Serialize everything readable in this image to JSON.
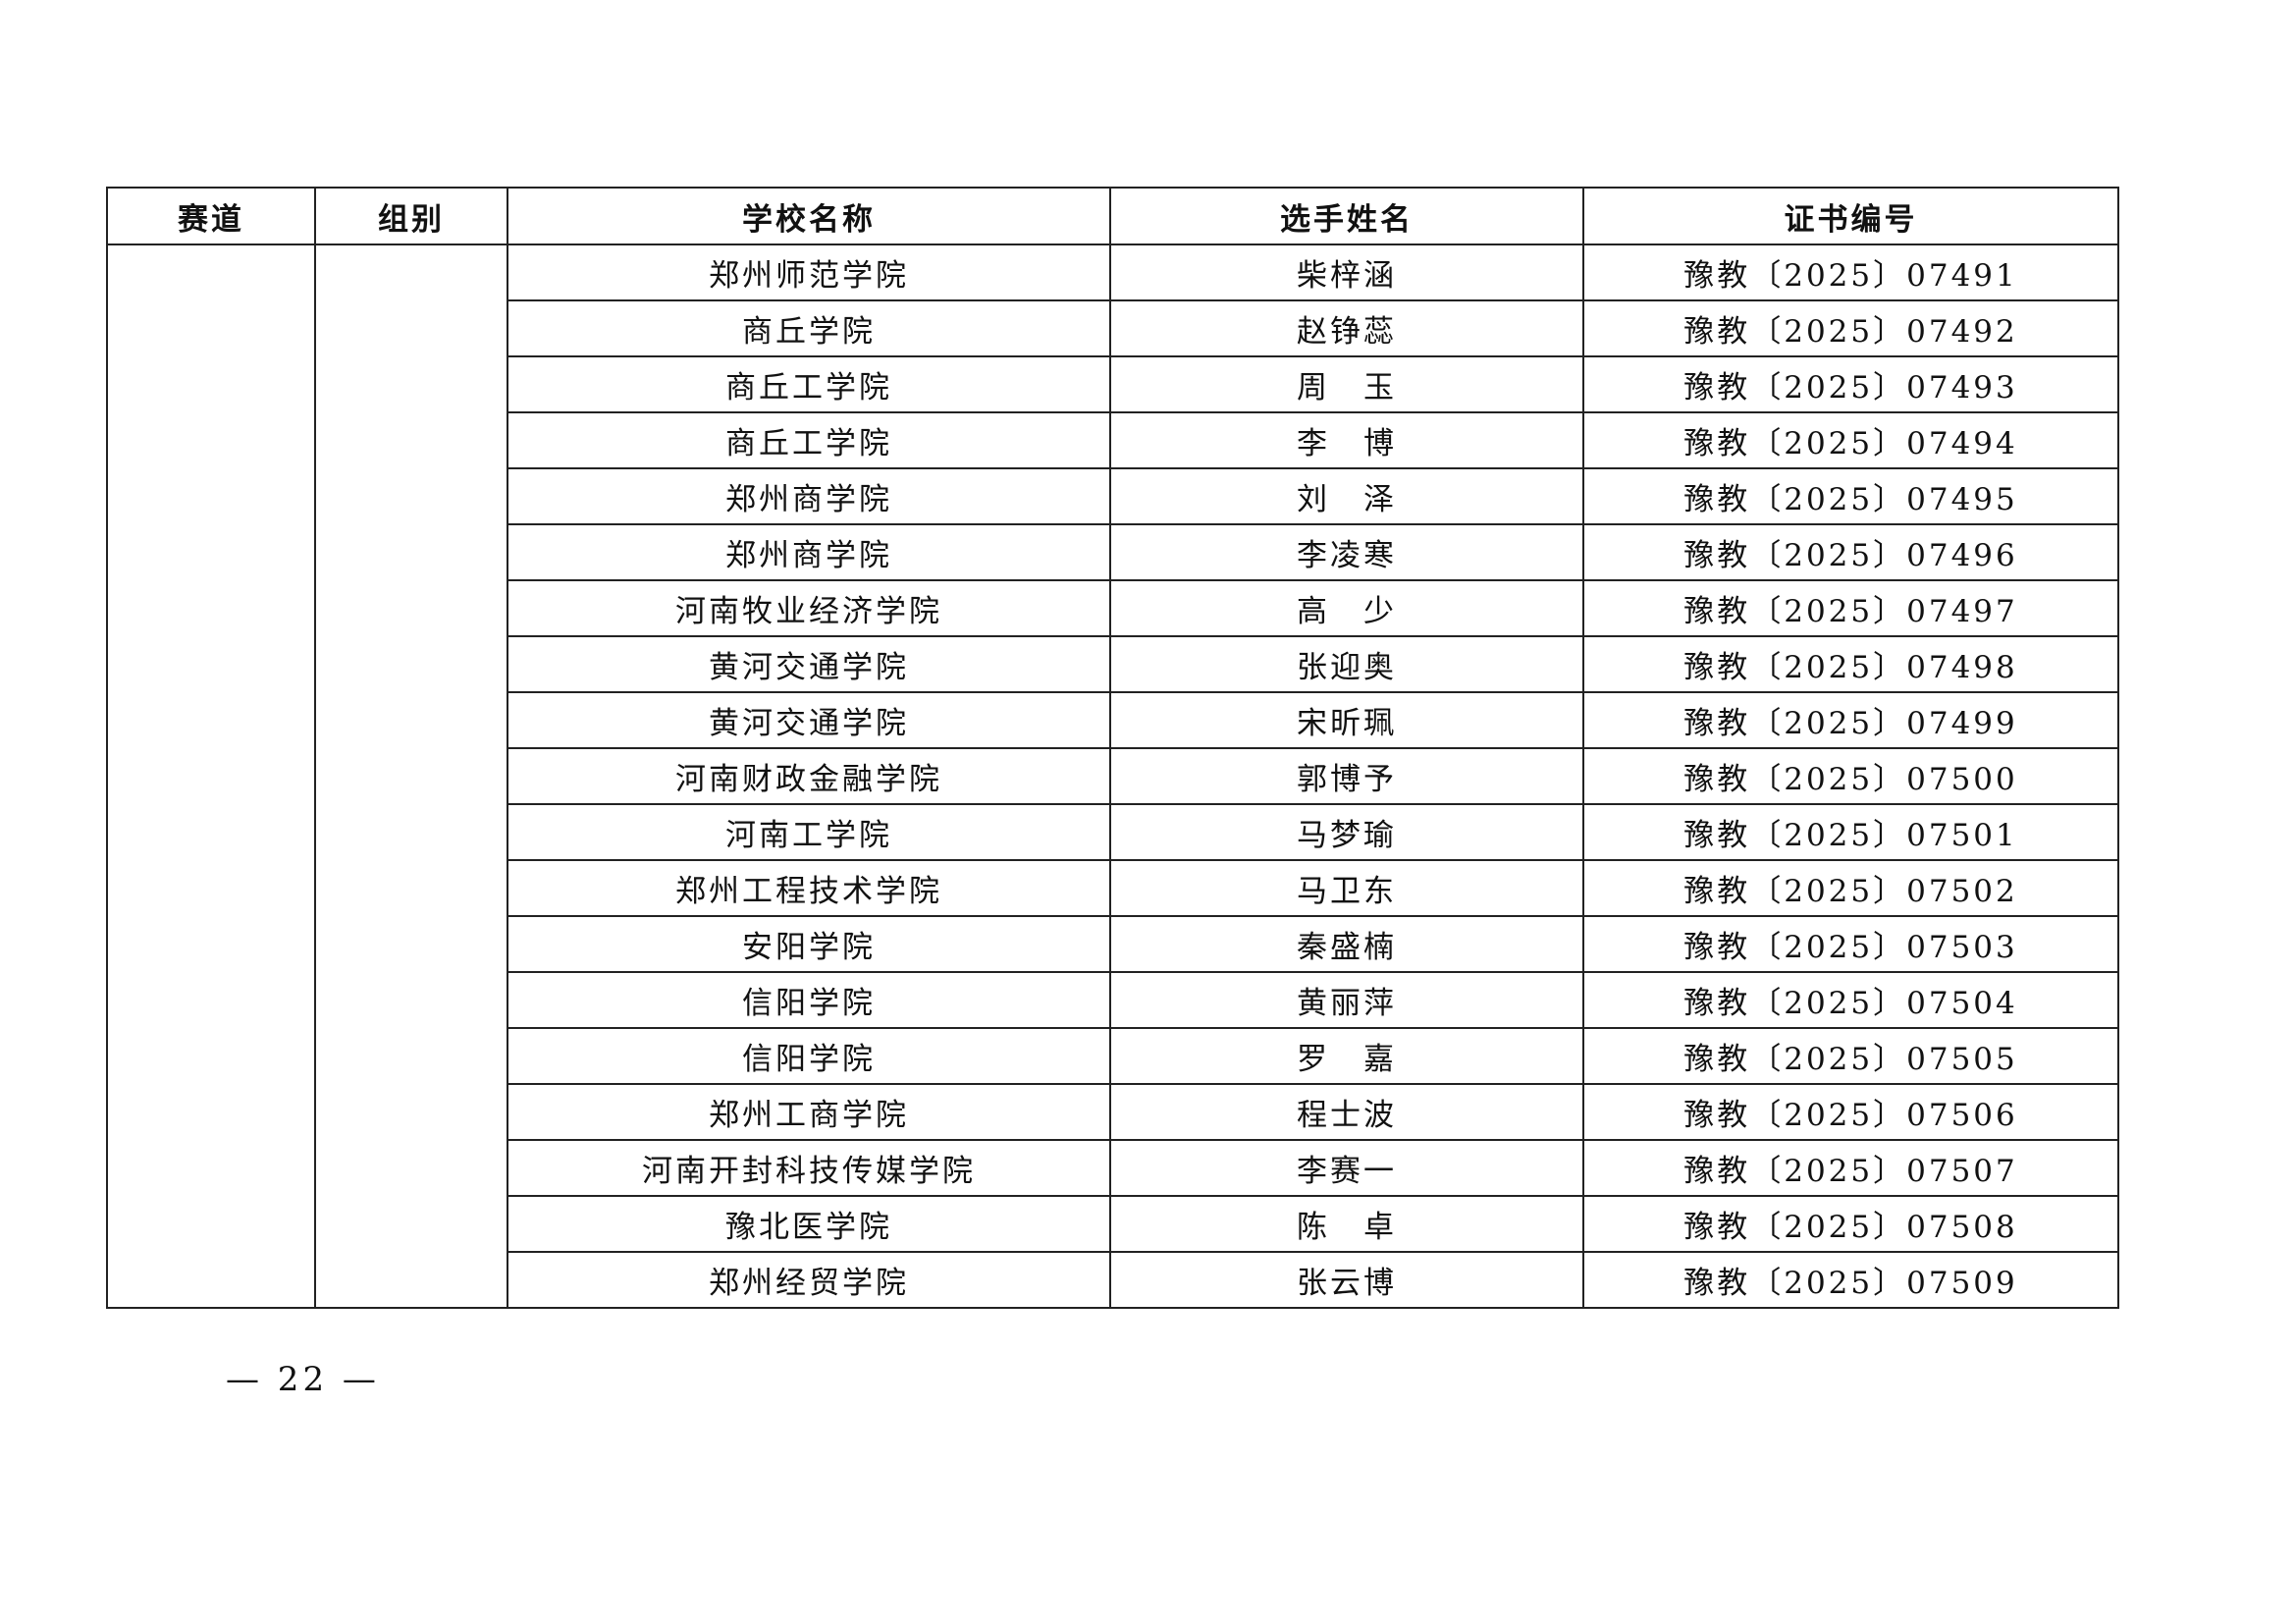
{
  "table": {
    "headers": [
      "赛道",
      "组别",
      "学校名称",
      "选手姓名",
      "证书编号"
    ],
    "track": "",
    "group": "",
    "rows": [
      {
        "school": "郑州师范学院",
        "name": "柴梓涵",
        "cert": "豫教〔2025〕07491"
      },
      {
        "school": "商丘学院",
        "name": "赵铮蕊",
        "cert": "豫教〔2025〕07492"
      },
      {
        "school": "商丘工学院",
        "name": "周　玉",
        "cert": "豫教〔2025〕07493"
      },
      {
        "school": "商丘工学院",
        "name": "李　博",
        "cert": "豫教〔2025〕07494"
      },
      {
        "school": "郑州商学院",
        "name": "刘　泽",
        "cert": "豫教〔2025〕07495"
      },
      {
        "school": "郑州商学院",
        "name": "李凌寒",
        "cert": "豫教〔2025〕07496"
      },
      {
        "school": "河南牧业经济学院",
        "name": "高　少",
        "cert": "豫教〔2025〕07497"
      },
      {
        "school": "黄河交通学院",
        "name": "张迎奥",
        "cert": "豫教〔2025〕07498"
      },
      {
        "school": "黄河交通学院",
        "name": "宋昕珮",
        "cert": "豫教〔2025〕07499"
      },
      {
        "school": "河南财政金融学院",
        "name": "郭博予",
        "cert": "豫教〔2025〕07500"
      },
      {
        "school": "河南工学院",
        "name": "马梦瑜",
        "cert": "豫教〔2025〕07501"
      },
      {
        "school": "郑州工程技术学院",
        "name": "马卫东",
        "cert": "豫教〔2025〕07502"
      },
      {
        "school": "安阳学院",
        "name": "秦盛楠",
        "cert": "豫教〔2025〕07503"
      },
      {
        "school": "信阳学院",
        "name": "黄丽萍",
        "cert": "豫教〔2025〕07504"
      },
      {
        "school": "信阳学院",
        "name": "罗　嘉",
        "cert": "豫教〔2025〕07505"
      },
      {
        "school": "郑州工商学院",
        "name": "程士波",
        "cert": "豫教〔2025〕07506"
      },
      {
        "school": "河南开封科技传媒学院",
        "name": "李赛一",
        "cert": "豫教〔2025〕07507"
      },
      {
        "school": "豫北医学院",
        "name": "陈　卓",
        "cert": "豫教〔2025〕07508"
      },
      {
        "school": "郑州经贸学院",
        "name": "张云博",
        "cert": "豫教〔2025〕07509"
      }
    ]
  },
  "footer": {
    "page_number": "— 22 —"
  }
}
